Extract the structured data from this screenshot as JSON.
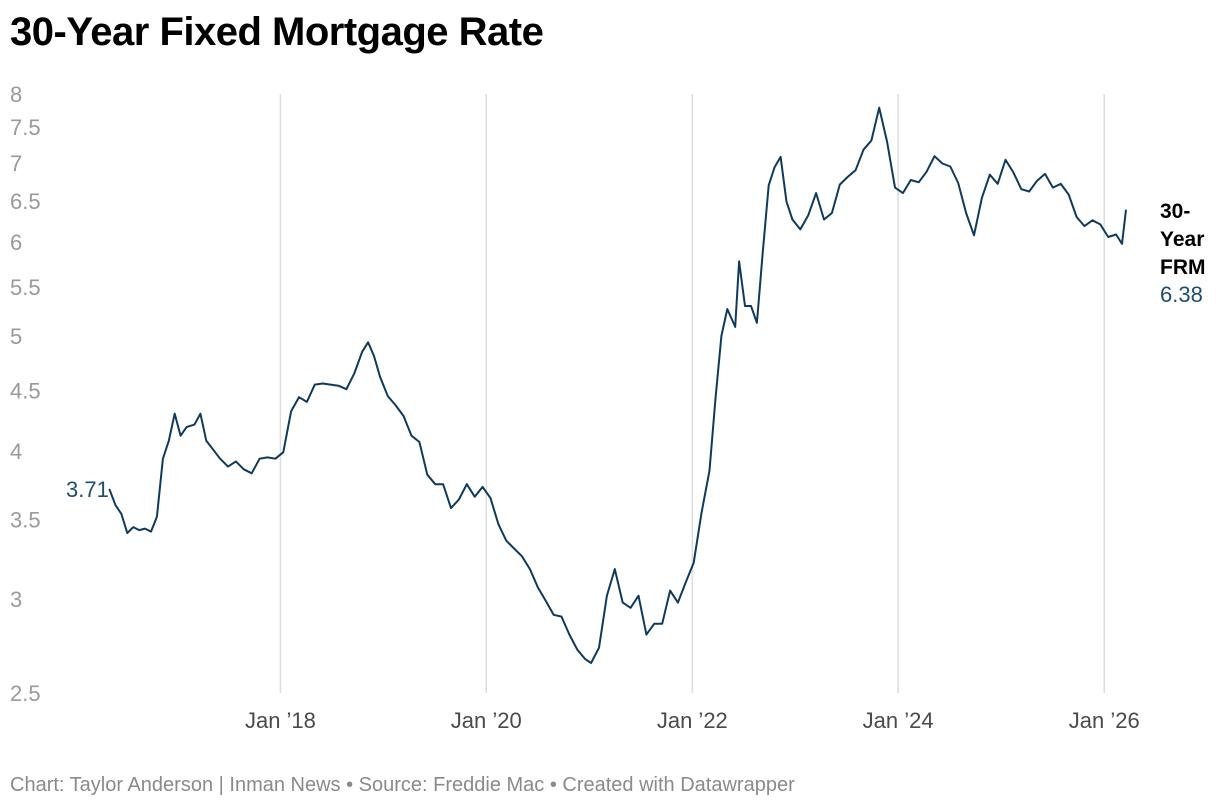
{
  "title": "30-Year Fixed Mortgage Rate",
  "footer": "Chart: Taylor Anderson | Inman News • Source: Freddie Mac • Created with Datawrapper",
  "colors": {
    "line": "#0f3a5c",
    "grid": "#dddddd",
    "label": "#1d4d6e"
  },
  "chart_data": {
    "type": "line",
    "title": "30-Year Fixed Mortgage Rate",
    "xlabel": "",
    "ylabel": "",
    "y_scale": "log",
    "ylim": [
      2.5,
      8
    ],
    "xlim": [
      "2016-04-01",
      "2026-05-15"
    ],
    "yticks": [
      {
        "value": 8,
        "label": "8"
      },
      {
        "value": 7.5,
        "label": "7.5"
      },
      {
        "value": 7,
        "label": "7"
      },
      {
        "value": 6.5,
        "label": "6.5"
      },
      {
        "value": 6,
        "label": "6"
      },
      {
        "value": 5.5,
        "label": "5.5"
      },
      {
        "value": 5,
        "label": "5"
      },
      {
        "value": 4.5,
        "label": "4.5"
      },
      {
        "value": 4,
        "label": "4"
      },
      {
        "value": 3.5,
        "label": "3.5"
      },
      {
        "value": 3,
        "label": "3"
      },
      {
        "value": 2.5,
        "label": "2.5"
      }
    ],
    "xticks": [
      {
        "date": "2018-01-01",
        "label": "Jan ’18"
      },
      {
        "date": "2020-01-01",
        "label": "Jan ’20"
      },
      {
        "date": "2022-01-01",
        "label": "Jan ’22"
      },
      {
        "date": "2024-01-01",
        "label": "Jan ’24"
      },
      {
        "date": "2026-01-01",
        "label": "Jan ’26"
      }
    ],
    "grid": "vertical",
    "start_label": "3.71",
    "end_label": {
      "name_lines": [
        "30-",
        "Year",
        "FRM"
      ],
      "value": "6.38"
    },
    "series": [
      {
        "name": "30-Year FRM",
        "x": [
          "2016-05-05",
          "2016-05-26",
          "2016-06-16",
          "2016-07-07",
          "2016-07-28",
          "2016-08-18",
          "2016-09-08",
          "2016-09-29",
          "2016-10-20",
          "2016-11-10",
          "2016-12-01",
          "2016-12-22",
          "2017-01-12",
          "2017-02-02",
          "2017-03-02",
          "2017-03-23",
          "2017-04-13",
          "2017-05-04",
          "2017-06-01",
          "2017-06-29",
          "2017-07-27",
          "2017-08-24",
          "2017-09-21",
          "2017-10-19",
          "2017-11-16",
          "2017-12-14",
          "2018-01-11",
          "2018-02-08",
          "2018-03-08",
          "2018-04-05",
          "2018-05-03",
          "2018-05-31",
          "2018-06-28",
          "2018-07-26",
          "2018-08-23",
          "2018-09-20",
          "2018-10-18",
          "2018-11-08",
          "2018-11-29",
          "2018-12-20",
          "2019-01-17",
          "2019-02-14",
          "2019-03-14",
          "2019-04-11",
          "2019-05-09",
          "2019-06-06",
          "2019-07-04",
          "2019-08-01",
          "2019-08-29",
          "2019-09-26",
          "2019-10-24",
          "2019-11-21",
          "2019-12-19",
          "2020-01-16",
          "2020-02-13",
          "2020-03-12",
          "2020-04-09",
          "2020-05-07",
          "2020-06-04",
          "2020-07-02",
          "2020-07-30",
          "2020-08-27",
          "2020-09-24",
          "2020-10-22",
          "2020-11-19",
          "2020-12-17",
          "2021-01-07",
          "2021-02-04",
          "2021-03-04",
          "2021-04-01",
          "2021-04-29",
          "2021-05-27",
          "2021-06-24",
          "2021-07-22",
          "2021-08-19",
          "2021-09-16",
          "2021-10-14",
          "2021-11-11",
          "2021-12-09",
          "2022-01-06",
          "2022-02-03",
          "2022-03-03",
          "2022-03-24",
          "2022-04-14",
          "2022-05-05",
          "2022-06-02",
          "2022-06-16",
          "2022-07-07",
          "2022-07-28",
          "2022-08-18",
          "2022-09-08",
          "2022-09-29",
          "2022-10-20",
          "2022-11-10",
          "2022-12-01",
          "2022-12-22",
          "2023-01-19",
          "2023-02-16",
          "2023-03-16",
          "2023-04-13",
          "2023-05-11",
          "2023-06-08",
          "2023-07-06",
          "2023-08-03",
          "2023-08-31",
          "2023-09-28",
          "2023-10-26",
          "2023-11-23",
          "2023-12-21",
          "2024-01-18",
          "2024-02-15",
          "2024-03-14",
          "2024-04-11",
          "2024-05-09",
          "2024-06-06",
          "2024-07-04",
          "2024-08-01",
          "2024-08-29",
          "2024-09-26",
          "2024-10-24",
          "2024-11-21",
          "2024-12-19",
          "2025-01-16",
          "2025-02-13",
          "2025-03-13",
          "2025-04-10",
          "2025-05-08",
          "2025-06-05",
          "2025-07-03",
          "2025-07-31",
          "2025-08-28",
          "2025-09-25",
          "2025-10-23",
          "2025-11-20",
          "2025-12-18",
          "2026-01-15",
          "2026-02-12",
          "2026-03-05",
          "2026-03-19"
        ],
        "values": [
          3.71,
          3.6,
          3.54,
          3.41,
          3.45,
          3.43,
          3.44,
          3.42,
          3.52,
          3.94,
          4.08,
          4.3,
          4.12,
          4.19,
          4.21,
          4.3,
          4.08,
          4.02,
          3.94,
          3.88,
          3.92,
          3.86,
          3.83,
          3.94,
          3.95,
          3.94,
          3.99,
          4.32,
          4.44,
          4.4,
          4.55,
          4.56,
          4.55,
          4.54,
          4.51,
          4.65,
          4.85,
          4.94,
          4.81,
          4.62,
          4.45,
          4.37,
          4.28,
          4.12,
          4.07,
          3.82,
          3.75,
          3.75,
          3.58,
          3.64,
          3.75,
          3.66,
          3.73,
          3.65,
          3.47,
          3.36,
          3.31,
          3.26,
          3.18,
          3.07,
          2.99,
          2.91,
          2.9,
          2.8,
          2.72,
          2.67,
          2.65,
          2.73,
          3.02,
          3.18,
          2.98,
          2.95,
          3.02,
          2.8,
          2.86,
          2.86,
          3.05,
          2.98,
          3.1,
          3.22,
          3.55,
          3.85,
          4.42,
          5.0,
          5.27,
          5.09,
          5.78,
          5.3,
          5.3,
          5.13,
          5.89,
          6.7,
          6.94,
          7.08,
          6.49,
          6.27,
          6.15,
          6.32,
          6.6,
          6.27,
          6.35,
          6.71,
          6.81,
          6.9,
          7.18,
          7.31,
          7.79,
          7.29,
          6.67,
          6.6,
          6.77,
          6.74,
          6.88,
          7.09,
          6.99,
          6.95,
          6.73,
          6.35,
          6.08,
          6.54,
          6.84,
          6.72,
          7.04,
          6.87,
          6.65,
          6.62,
          6.76,
          6.85,
          6.67,
          6.72,
          6.58,
          6.3,
          6.19,
          6.26,
          6.21,
          6.06,
          6.09,
          5.98,
          6.38
        ]
      }
    ]
  }
}
